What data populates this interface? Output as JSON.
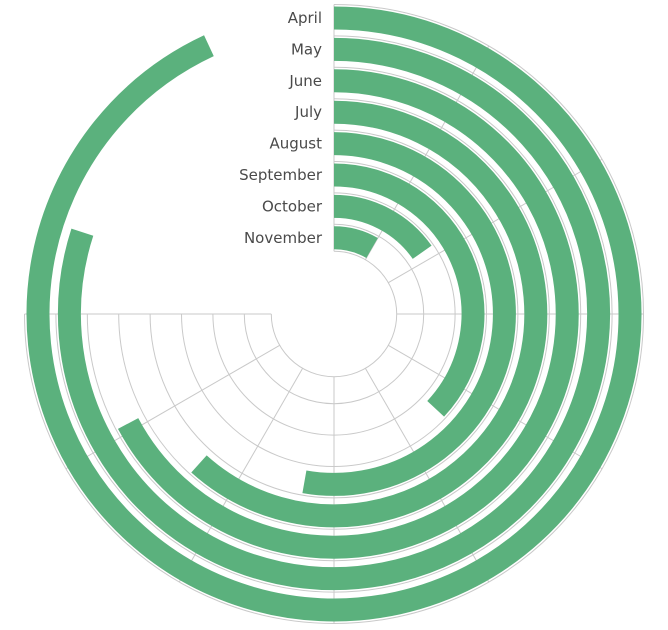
{
  "chart_data": {
    "type": "radial-bar",
    "categories": [
      "April",
      "May",
      "June",
      "July",
      "August",
      "September",
      "October",
      "November"
    ],
    "values": [
      335,
      288,
      242,
      222,
      190,
      133,
      55,
      30
    ],
    "max": 360,
    "start_angle": "top",
    "direction": "clockwise",
    "grid": true,
    "colors": {
      "bar": "#5bb17d",
      "grid": "#c9c9c9",
      "label": "#4a4a4a"
    }
  }
}
